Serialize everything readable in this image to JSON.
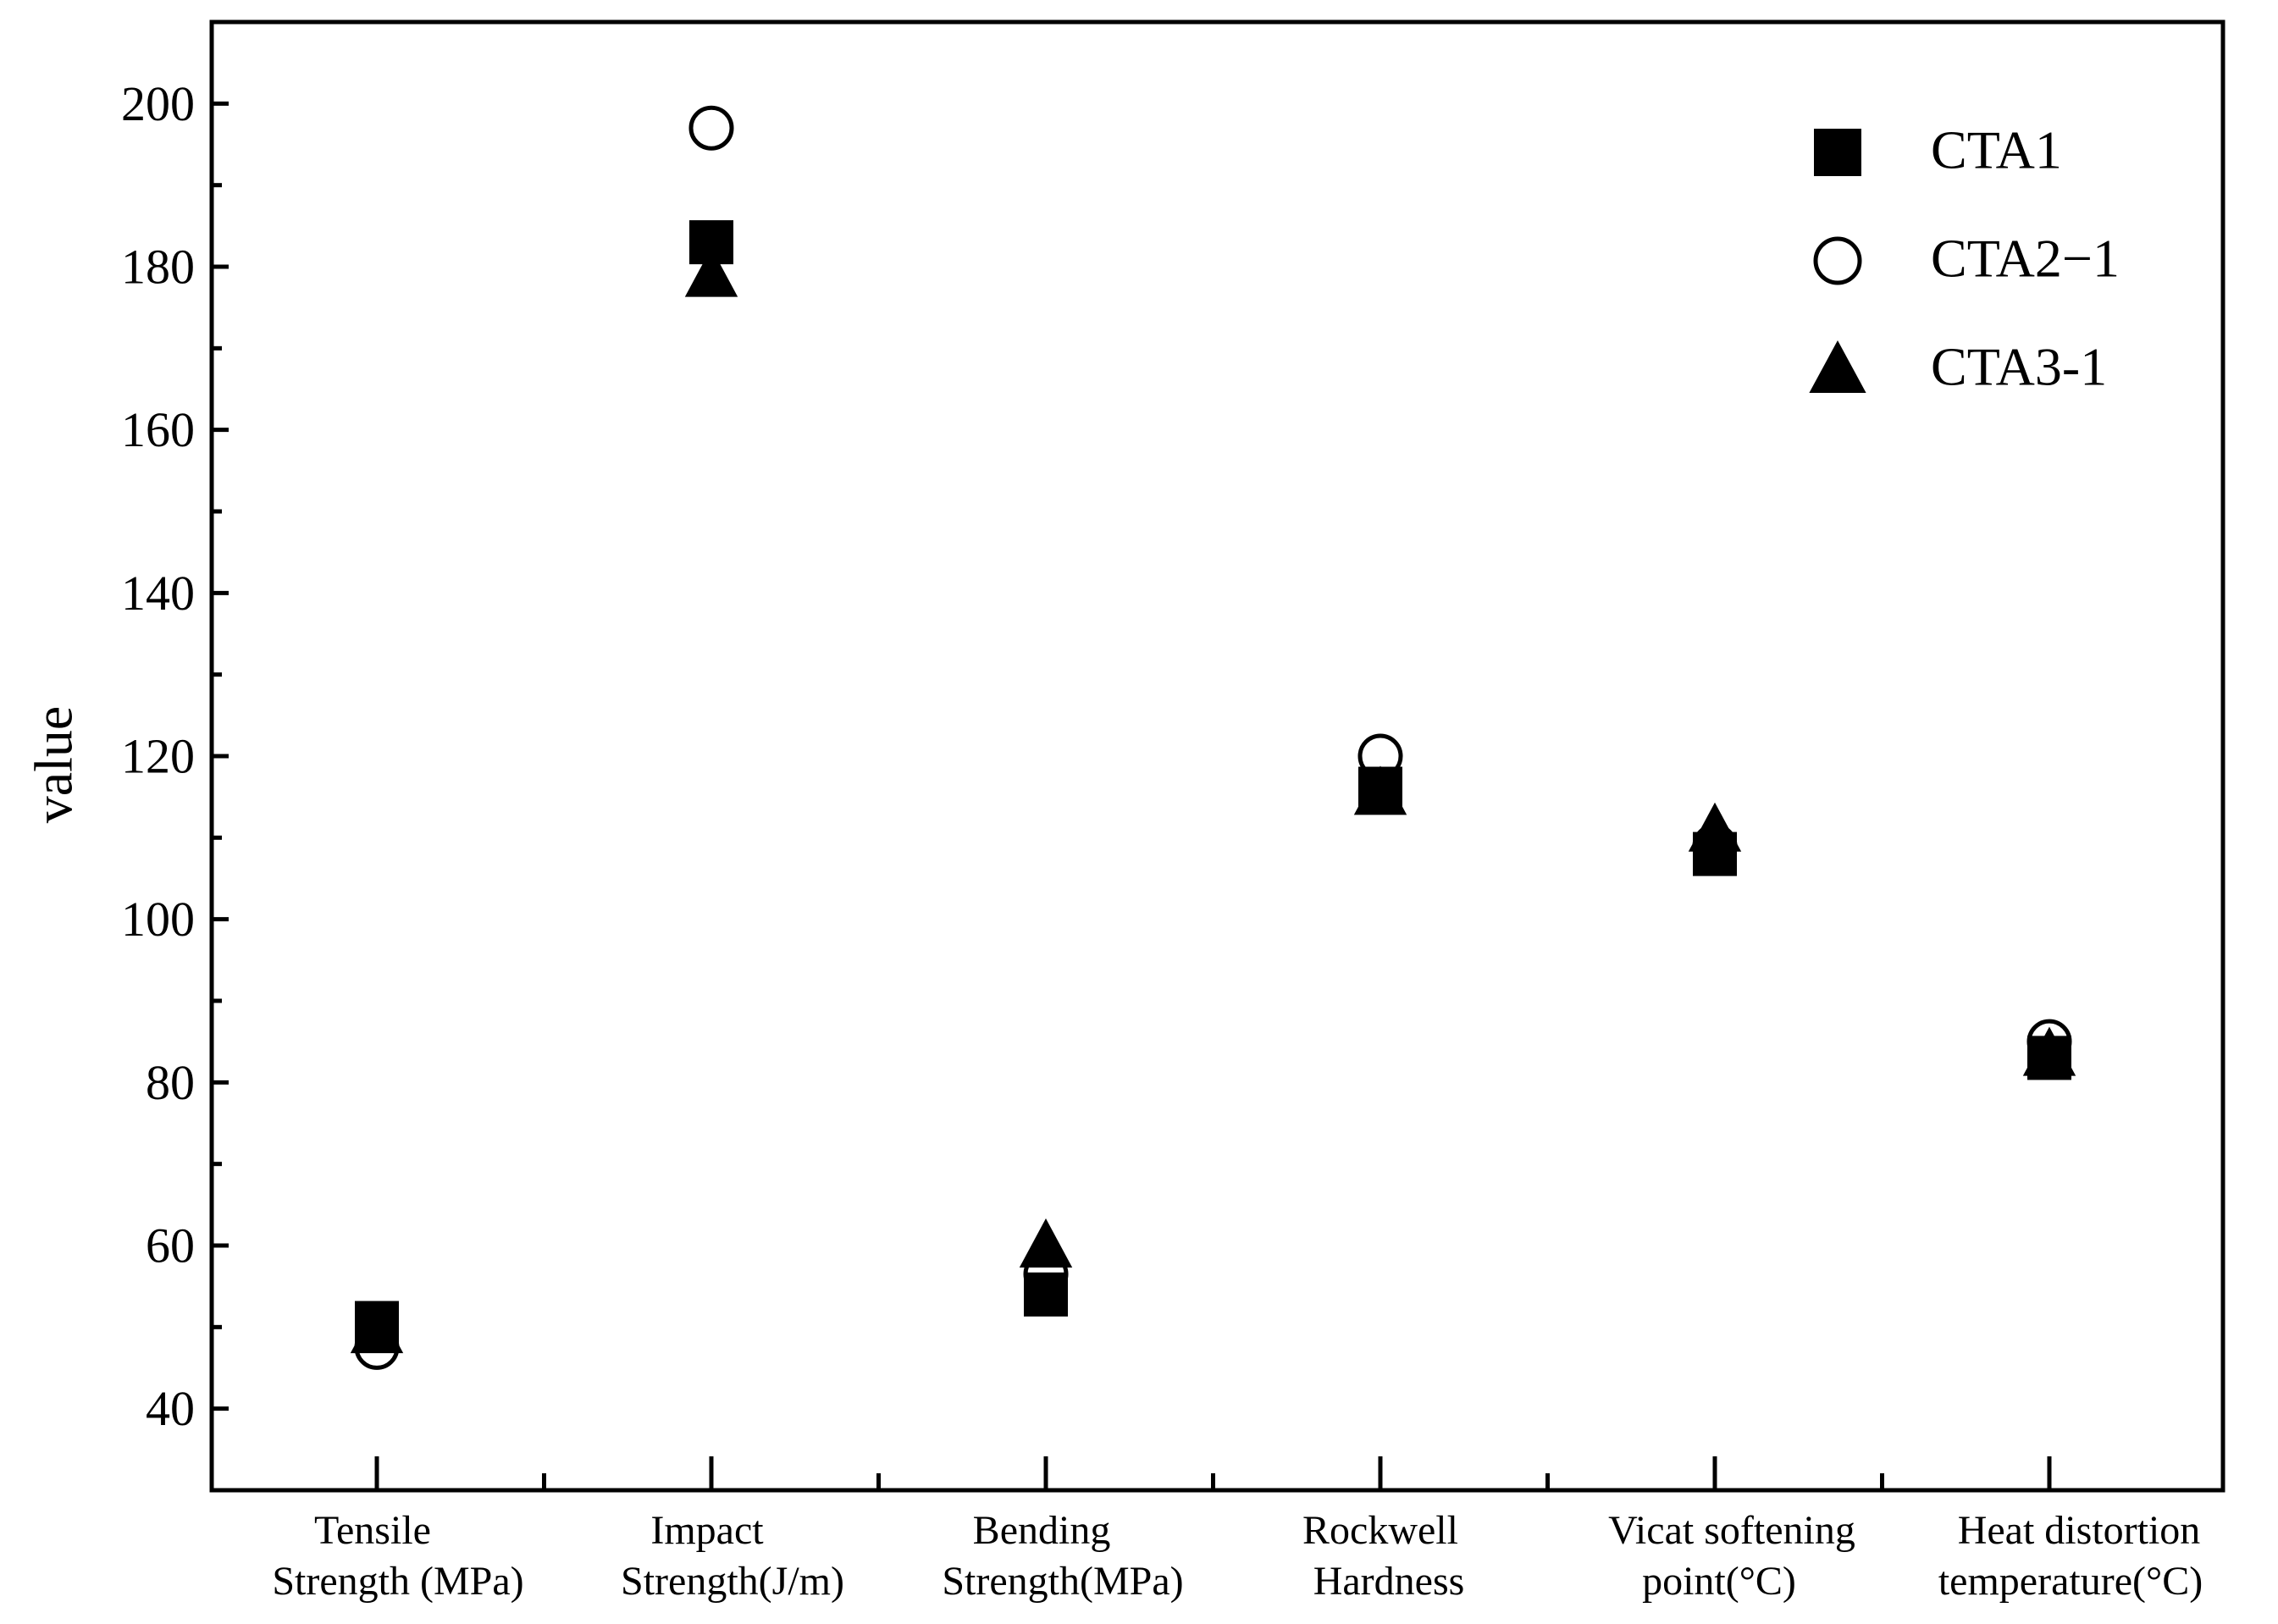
{
  "chart_data": {
    "type": "scatter",
    "title": "",
    "xlabel": "",
    "ylabel": "value",
    "ylim": [
      30,
      210
    ],
    "yticks": [
      40,
      60,
      80,
      100,
      120,
      140,
      160,
      180,
      200
    ],
    "grid": false,
    "legend_position": "top-right",
    "categories": [
      [
        "Tensile",
        "Strength (MPa)"
      ],
      [
        "Impact",
        "Strength(J/m)"
      ],
      [
        "Bending",
        "Strength(MPa)"
      ],
      [
        "Rockwell",
        "Hardness"
      ],
      [
        "Vicat softening",
        "point(°C)"
      ],
      [
        "Heat distortion",
        "temperature(°C)"
      ]
    ],
    "series": [
      {
        "name": "CTA1",
        "marker": "square-filled",
        "values": [
          50.5,
          183,
          54,
          116,
          108,
          83
        ]
      },
      {
        "name": "CTA2−1",
        "marker": "circle-open",
        "values": [
          47.5,
          197,
          56.5,
          120,
          109,
          85
        ]
      },
      {
        "name": "CTA3-1",
        "marker": "triangle-filled",
        "values": [
          49.5,
          179,
          60,
          115.5,
          111,
          83.5
        ]
      }
    ],
    "colors": {
      "axis": "#000000",
      "marker": "#000000",
      "background": "#ffffff"
    }
  }
}
